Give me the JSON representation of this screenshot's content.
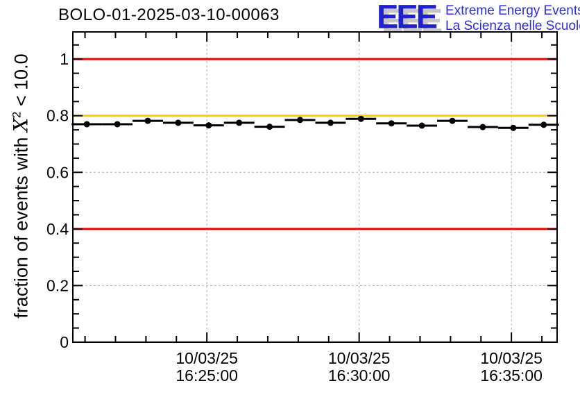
{
  "header": {
    "title": "BOLO-01-2025-03-10-00063"
  },
  "logo": {
    "acronym": "EEE",
    "line1": "Extreme Energy Events",
    "line2": "La Scienza nelle Scuole",
    "acronym_color": "#2121cc",
    "text_color": "#2b2be0",
    "shadow_color": "#c6c6c6"
  },
  "y_axis_title": {
    "prefix": "fraction of events with ",
    "symbol": "X",
    "superscript": "2",
    "suffix": " < 10.0"
  },
  "colors": {
    "background": "#ffffff",
    "frame": "#000000",
    "grid": "#b3b3b3",
    "red_line": "#ee0000",
    "orange_line": "#ffcc00",
    "marker": "#000000"
  },
  "chart_data": {
    "type": "line",
    "title": "BOLO-01-2025-03-10-00063",
    "xlabel": "",
    "ylabel": "fraction of events with X^2 < 10.0",
    "ylim": [
      0,
      1.096
    ],
    "x_domain_minutes_rel_16_25": [
      -4.4,
      11.5
    ],
    "grid": "dashed at major ticks",
    "legend": "none",
    "x_major_ticks": [
      {
        "offset_min": 0,
        "date": "10/03/25",
        "time": "16:25:00"
      },
      {
        "offset_min": 5,
        "date": "10/03/25",
        "time": "16:30:00"
      },
      {
        "offset_min": 10,
        "date": "10/03/25",
        "time": "16:35:00"
      }
    ],
    "x_minor_step_min": 1,
    "y_major_ticks": [
      {
        "value": 0,
        "label": "0"
      },
      {
        "value": 0.2,
        "label": "0.2"
      },
      {
        "value": 0.4,
        "label": "0.4"
      },
      {
        "value": 0.6,
        "label": "0.6"
      },
      {
        "value": 0.8,
        "label": "0.8"
      },
      {
        "value": 1,
        "label": "1"
      }
    ],
    "y_minor_step": 0.05,
    "reference_lines": [
      {
        "y": 1.0,
        "color": "#ee0000",
        "name": "upper-limit"
      },
      {
        "y": 0.8,
        "color": "#ffcc00",
        "name": "warning-level"
      },
      {
        "y": 0.4,
        "color": "#ee0000",
        "name": "lower-limit"
      }
    ],
    "series": [
      {
        "name": "fraction of events with chi2 < 10.0",
        "marker": "filled-circle",
        "color": "#000000",
        "x_error_half_min": 0.5,
        "points": [
          {
            "time": "16:21:00",
            "offset_min": -3.94,
            "y": 0.77
          },
          {
            "time": "16:22:00",
            "offset_min": -2.94,
            "y": 0.77
          },
          {
            "time": "16:23:00",
            "offset_min": -1.94,
            "y": 0.782
          },
          {
            "time": "16:24:00",
            "offset_min": -0.94,
            "y": 0.775
          },
          {
            "time": "16:25:00",
            "offset_min": 0.06,
            "y": 0.766
          },
          {
            "time": "16:26:00",
            "offset_min": 1.06,
            "y": 0.775
          },
          {
            "time": "16:27:00",
            "offset_min": 2.06,
            "y": 0.761
          },
          {
            "time": "16:28:00",
            "offset_min": 3.06,
            "y": 0.785
          },
          {
            "time": "16:29:00",
            "offset_min": 4.06,
            "y": 0.775
          },
          {
            "time": "16:30:00",
            "offset_min": 5.06,
            "y": 0.789
          },
          {
            "time": "16:31:00",
            "offset_min": 6.06,
            "y": 0.773
          },
          {
            "time": "16:32:00",
            "offset_min": 7.06,
            "y": 0.765
          },
          {
            "time": "16:33:00",
            "offset_min": 8.06,
            "y": 0.782
          },
          {
            "time": "16:34:00",
            "offset_min": 9.06,
            "y": 0.76
          },
          {
            "time": "16:35:00",
            "offset_min": 10.06,
            "y": 0.757
          },
          {
            "time": "16:36:00",
            "offset_min": 11.06,
            "y": 0.768
          }
        ]
      }
    ]
  }
}
